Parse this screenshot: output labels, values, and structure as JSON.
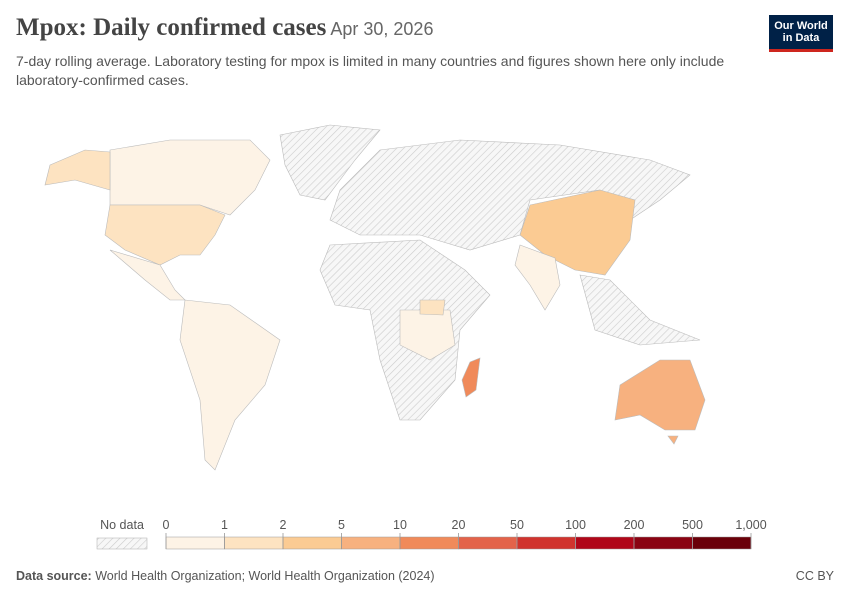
{
  "header": {
    "title": "Mpox: Daily confirmed cases",
    "date": "Apr 30, 2026",
    "subtitle": "7-day rolling average. Laboratory testing for mpox is limited in many countries and figures shown here only include laboratory-confirmed cases.",
    "logo": "Our World in Data"
  },
  "chart_data": {
    "type": "map",
    "no_data_label": "No data",
    "legend_ticks": [
      0,
      1,
      2,
      5,
      10,
      20,
      50,
      100,
      200,
      500,
      {
        "value": 1000,
        "label": "1,000"
      }
    ],
    "legend_colors": [
      "#fdf3e6",
      "#fde3c1",
      "#fbcb93",
      "#f7b17f",
      "#f08a5a",
      "#e3634a",
      "#d0332d",
      "#b00619",
      "#8a0312",
      "#6a0009"
    ]
  },
  "footer": {
    "source_label": "Data source:",
    "source": "World Health Organization; World Health Organization (2024)",
    "license": "CC BY"
  }
}
